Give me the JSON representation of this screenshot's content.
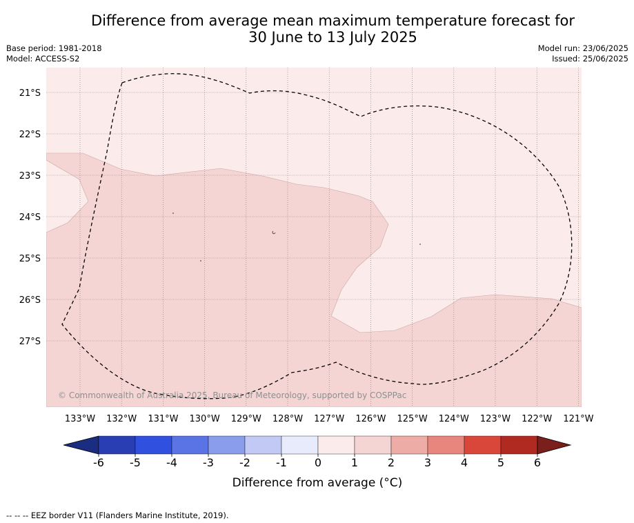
{
  "title": {
    "line1": "Difference from average mean maximum temperature forecast for",
    "line2": "30 June to 13 July 2025"
  },
  "meta_left": {
    "base_period": "Base period: 1981-2018",
    "model": "Model: ACCESS-S2"
  },
  "meta_right": {
    "model_run": "Model run: 23/06/2025",
    "issued": "Issued: 25/06/2025"
  },
  "map": {
    "lat_labels": [
      "21°S",
      "22°S",
      "23°S",
      "24°S",
      "25°S",
      "26°S",
      "27°S"
    ],
    "lon_labels": [
      "133°W",
      "132°W",
      "131°W",
      "130°W",
      "129°W",
      "128°W",
      "127°W",
      "126°W",
      "125°W",
      "124°W",
      "123°W",
      "122°W",
      "121°W"
    ],
    "copyright": "© Commonwealth of Australia 2025, Bureau of Meteorology, supported by COSPPac",
    "background_category": "0 to 1",
    "main_category": "1 to 2"
  },
  "colorbar": {
    "ticks": [
      "-6",
      "-5",
      "-4",
      "-3",
      "-2",
      "-1",
      "0",
      "1",
      "2",
      "3",
      "4",
      "5",
      "6"
    ],
    "colors": [
      "#1a2d80",
      "#2a3eb3",
      "#3051e0",
      "#5b74e5",
      "#8a9cec",
      "#c2c9f4",
      "#e8ebfb",
      "#fbeceb",
      "#f4d5d3",
      "#eeaca7",
      "#e8867e",
      "#d9463a",
      "#b02a22",
      "#7a1f1b"
    ],
    "label": "Difference from average (°C)"
  },
  "footer": "-- -- -- EEZ border V11 (Flanders Marine Institute, 2019)."
}
